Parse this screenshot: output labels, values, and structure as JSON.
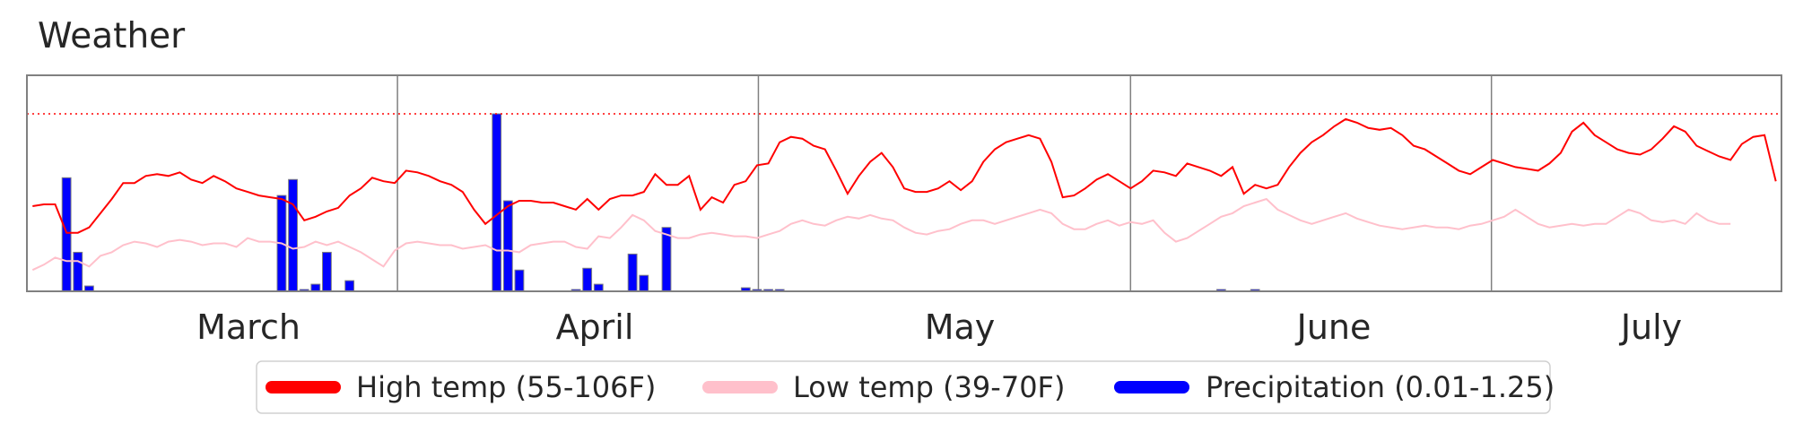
{
  "chart_data": {
    "type": "line",
    "title": "Weather",
    "xlabel": "",
    "ylabel": "",
    "x_tick_labels": [
      "March",
      "April",
      "May",
      "June",
      "July"
    ],
    "legend_placement": "bottom-center",
    "grid": "vertical month separators",
    "colors": {
      "high": "#ff0000",
      "low": "#ffc0cb",
      "precip": "#0000ff",
      "bar_edge": "#808080",
      "axes": "#808080"
    },
    "reference_line": {
      "value": 1.0,
      "style": "dotted",
      "color": "#ff0000"
    },
    "series": [
      {
        "name": "High temp (55-106F)",
        "kind": "line",
        "color": "#ff0000",
        "values": [
          0.48,
          0.49,
          0.49,
          0.33,
          0.33,
          0.36,
          0.44,
          0.52,
          0.61,
          0.61,
          0.65,
          0.66,
          0.65,
          0.67,
          0.63,
          0.61,
          0.65,
          0.62,
          0.58,
          0.56,
          0.54,
          0.53,
          0.52,
          0.49,
          0.4,
          0.42,
          0.45,
          0.47,
          0.54,
          0.58,
          0.64,
          0.62,
          0.61,
          0.68,
          0.67,
          0.65,
          0.62,
          0.6,
          0.56,
          0.46,
          0.38,
          0.43,
          0.48,
          0.51,
          0.51,
          0.5,
          0.5,
          0.48,
          0.46,
          0.52,
          0.46,
          0.52,
          0.54,
          0.54,
          0.56,
          0.66,
          0.6,
          0.6,
          0.65,
          0.46,
          0.53,
          0.5,
          0.6,
          0.62,
          0.71,
          0.72,
          0.84,
          0.87,
          0.86,
          0.82,
          0.8,
          0.68,
          0.55,
          0.65,
          0.73,
          0.78,
          0.7,
          0.58,
          0.56,
          0.56,
          0.58,
          0.62,
          0.57,
          0.62,
          0.73,
          0.8,
          0.84,
          0.86,
          0.88,
          0.86,
          0.73,
          0.53,
          0.54,
          0.58,
          0.63,
          0.66,
          0.62,
          0.58,
          0.62,
          0.68,
          0.67,
          0.65,
          0.72,
          0.7,
          0.68,
          0.65,
          0.7,
          0.55,
          0.6,
          0.58,
          0.6,
          0.7,
          0.78,
          0.84,
          0.88,
          0.93,
          0.97,
          0.95,
          0.92,
          0.91,
          0.92,
          0.88,
          0.82,
          0.8,
          0.76,
          0.72,
          0.68,
          0.66,
          0.7,
          0.74,
          0.72,
          0.7,
          0.69,
          0.68,
          0.72,
          0.78,
          0.9,
          0.95,
          0.88,
          0.84,
          0.8,
          0.78,
          0.77,
          0.8,
          0.86,
          0.93,
          0.9,
          0.82,
          0.79,
          0.76,
          0.74,
          0.83,
          0.87,
          0.88,
          0.62
        ]
      },
      {
        "name": "Low temp (39-70F)",
        "kind": "line",
        "color": "#ffc0cb",
        "values": [
          0.12,
          0.15,
          0.19,
          0.17,
          0.17,
          0.14,
          0.2,
          0.22,
          0.26,
          0.28,
          0.27,
          0.25,
          0.28,
          0.29,
          0.28,
          0.26,
          0.27,
          0.27,
          0.25,
          0.3,
          0.28,
          0.28,
          0.27,
          0.24,
          0.25,
          0.28,
          0.26,
          0.28,
          0.25,
          0.22,
          0.18,
          0.14,
          0.23,
          0.27,
          0.28,
          0.27,
          0.26,
          0.26,
          0.24,
          0.25,
          0.26,
          0.23,
          0.23,
          0.22,
          0.26,
          0.27,
          0.28,
          0.28,
          0.25,
          0.24,
          0.31,
          0.3,
          0.36,
          0.43,
          0.4,
          0.34,
          0.32,
          0.3,
          0.3,
          0.32,
          0.33,
          0.32,
          0.31,
          0.31,
          0.3,
          0.32,
          0.34,
          0.38,
          0.4,
          0.38,
          0.37,
          0.4,
          0.42,
          0.41,
          0.43,
          0.41,
          0.4,
          0.36,
          0.33,
          0.32,
          0.34,
          0.35,
          0.38,
          0.4,
          0.4,
          0.38,
          0.4,
          0.42,
          0.44,
          0.46,
          0.44,
          0.38,
          0.35,
          0.35,
          0.38,
          0.4,
          0.37,
          0.39,
          0.38,
          0.4,
          0.33,
          0.28,
          0.3,
          0.34,
          0.38,
          0.42,
          0.44,
          0.48,
          0.5,
          0.52,
          0.46,
          0.43,
          0.4,
          0.38,
          0.4,
          0.42,
          0.44,
          0.41,
          0.39,
          0.37,
          0.36,
          0.35,
          0.36,
          0.37,
          0.36,
          0.36,
          0.35,
          0.37,
          0.38,
          0.4,
          0.42,
          0.46,
          0.42,
          0.38,
          0.36,
          0.37,
          0.38,
          0.37,
          0.38,
          0.38,
          0.42,
          0.46,
          0.44,
          0.4,
          0.39,
          0.4,
          0.38,
          0.44,
          0.4,
          0.38,
          0.38
        ]
      },
      {
        "name": "Precipitation (0.01-1.25)",
        "kind": "bar",
        "color": "#0000ff",
        "values": [
          0,
          0,
          0,
          0.64,
          0.22,
          0.03,
          0,
          0,
          0,
          0,
          0,
          0,
          0,
          0,
          0,
          0,
          0,
          0,
          0,
          0,
          0,
          0,
          0.54,
          0.63,
          0.01,
          0.04,
          0.22,
          0,
          0.06,
          0,
          0,
          0,
          0,
          0,
          0,
          0,
          0,
          0,
          0,
          0,
          0,
          1.0,
          0.51,
          0.12,
          0,
          0,
          0,
          0,
          0.01,
          0.13,
          0.04,
          0,
          0,
          0.21,
          0.09,
          0,
          0.36,
          0,
          0,
          0,
          0,
          0,
          0,
          0.02,
          0.01,
          0.01,
          0.01,
          0,
          0,
          0,
          0,
          0,
          0,
          0,
          0,
          0,
          0,
          0,
          0,
          0,
          0,
          0,
          0,
          0,
          0,
          0,
          0,
          0,
          0,
          0,
          0,
          0,
          0,
          0,
          0,
          0,
          0,
          0,
          0,
          0,
          0,
          0,
          0,
          0,
          0,
          0.01,
          0,
          0,
          0.01,
          0,
          0,
          0,
          0,
          0,
          0,
          0,
          0,
          0,
          0,
          0,
          0,
          0,
          0,
          0,
          0,
          0,
          0,
          0,
          0,
          0,
          0,
          0,
          0,
          0,
          0,
          0,
          0,
          0,
          0,
          0,
          0,
          0,
          0,
          0,
          0,
          0,
          0,
          0,
          0,
          0,
          0,
          0,
          0,
          0,
          0,
          0,
          0
        ]
      }
    ]
  }
}
